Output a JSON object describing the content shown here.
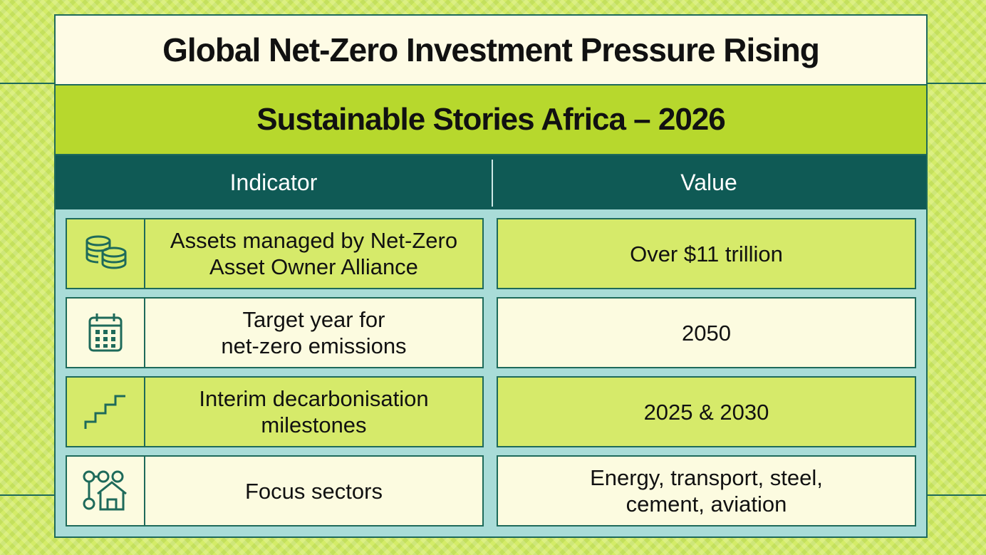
{
  "title": "Global Net-Zero Investment Pressure Rising",
  "subtitle": "Sustainable Stories Africa – 2026",
  "table": {
    "headers": {
      "indicator": "Indicator",
      "value": "Value"
    },
    "rows": [
      {
        "icon": "coins-stack-icon",
        "indicator_line1": "Assets managed by Net-Zero",
        "indicator_line2": "Asset Owner Alliance",
        "value_line1": "Over $11 trillion",
        "value_line2": ""
      },
      {
        "icon": "calendar-icon",
        "indicator_line1": "Target year for",
        "indicator_line2": "net-zero emissions",
        "value_line1": "2050",
        "value_line2": ""
      },
      {
        "icon": "stairs-icon",
        "indicator_line1": "Interim decarbonisation",
        "indicator_line2": "milestones",
        "value_line1": "2025 & 2030",
        "value_line2": ""
      },
      {
        "icon": "sectors-house-icon",
        "indicator_line1": "Focus sectors",
        "indicator_line2": "",
        "value_line1": "Energy, transport, steel,",
        "value_line2": "cement, aviation"
      }
    ]
  },
  "colors": {
    "frame": "#1e6a5a",
    "header_band": "#0f5a55",
    "subtitle_band": "#b7d82d",
    "row_lime": "#d6ea6a",
    "row_cream": "#fcfbe0"
  }
}
